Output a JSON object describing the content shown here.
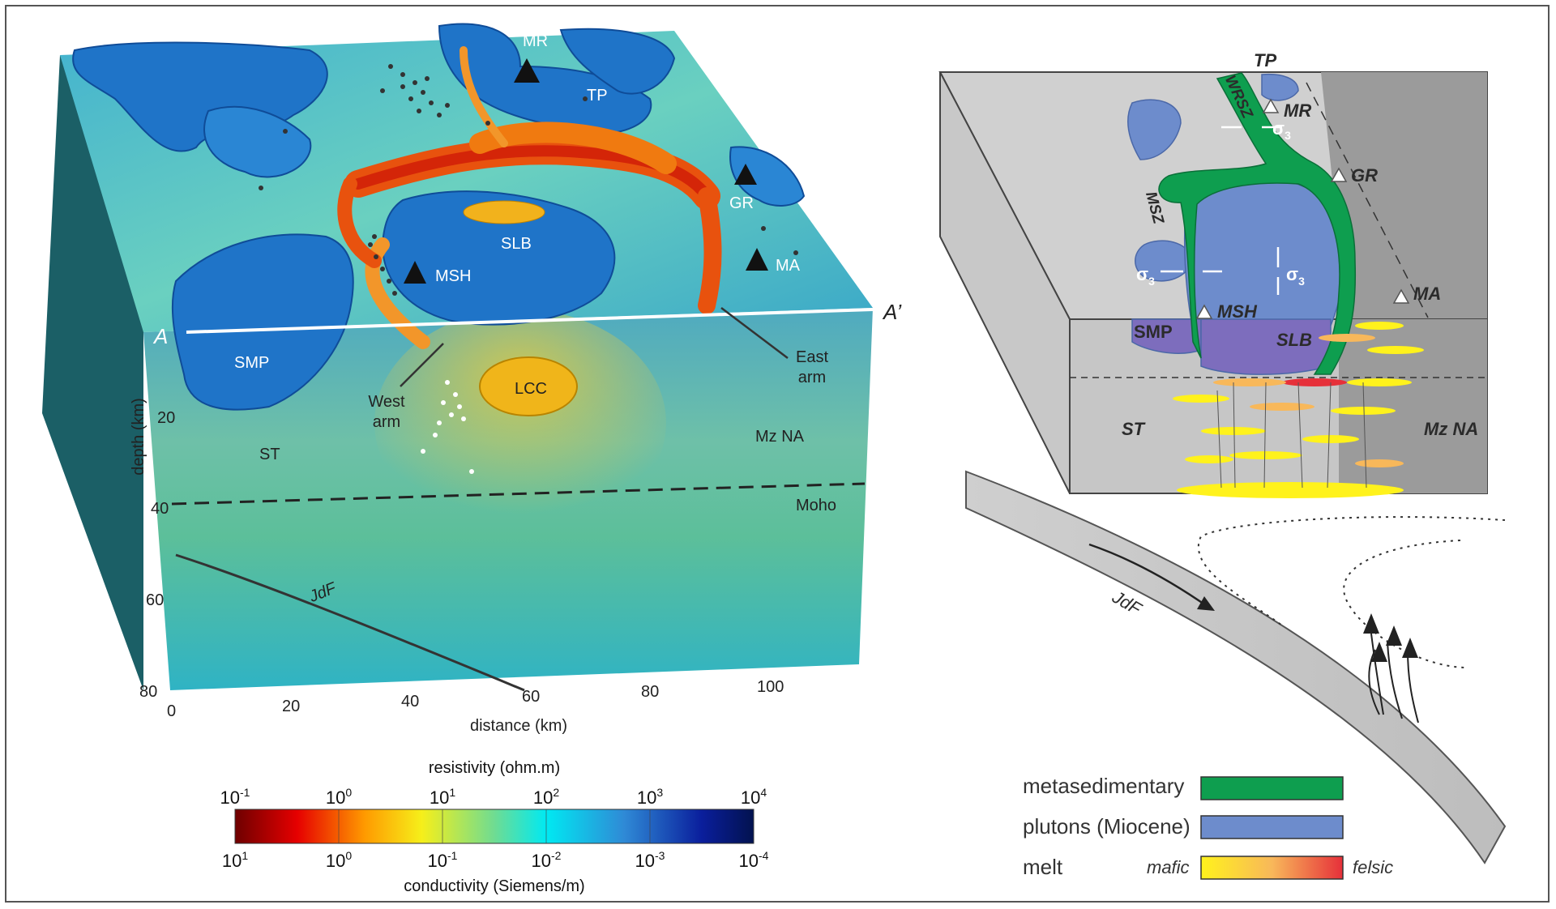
{
  "left_model": {
    "surface_labels": {
      "mr": "MR",
      "tp": "TP",
      "gr": "GR",
      "slb": "SLB",
      "msh": "MSH",
      "ma": "MA",
      "smp": "SMP"
    },
    "section_labels": {
      "a": "A",
      "a_prime": "A’",
      "west_arm": [
        "West",
        "arm"
      ],
      "east_arm": [
        "East",
        "arm"
      ],
      "lcc": "LCC",
      "st": "ST",
      "mz_na": "Mz NA",
      "moho": "Moho",
      "jdf": "JdF"
    },
    "depth_axis": {
      "title": "depth (km)",
      "ticks": [
        "20",
        "40",
        "60",
        "80"
      ]
    },
    "distance_axis": {
      "title": "distance (km)",
      "ticks": [
        "0",
        "20",
        "40",
        "60",
        "80",
        "100"
      ]
    }
  },
  "colorbar": {
    "resistivity_title": "resistivity (ohm.m)",
    "conductivity_title": "conductivity (Siemens/m)",
    "resistivity_ticks": [
      {
        "base": "10",
        "exp": "-1"
      },
      {
        "base": "10",
        "exp": "0"
      },
      {
        "base": "10",
        "exp": "1"
      },
      {
        "base": "10",
        "exp": "2"
      },
      {
        "base": "10",
        "exp": "3"
      },
      {
        "base": "10",
        "exp": "4"
      }
    ],
    "conductivity_ticks": [
      {
        "base": "10",
        "exp": "1"
      },
      {
        "base": "10",
        "exp": "0"
      },
      {
        "base": "10",
        "exp": "-1"
      },
      {
        "base": "10",
        "exp": "-2"
      },
      {
        "base": "10",
        "exp": "-3"
      },
      {
        "base": "10",
        "exp": "-4"
      }
    ],
    "colors": [
      "#6e0000",
      "#e60000",
      "#ff9a00",
      "#f6ef1a",
      "#6fdc92",
      "#00e9f2",
      "#2f8ad6",
      "#0a1e9c",
      "#02124f"
    ]
  },
  "right_diagram": {
    "labels": {
      "tp": "TP",
      "mr": "MR",
      "wrsz": "WRSZ",
      "gr": "GR",
      "msz": "MSZ",
      "ma": "MA",
      "msh": "MSH",
      "smp": "SMP",
      "slb": "SLB",
      "st": "ST",
      "mz_na": "Mz NA",
      "jdf": "JdF",
      "sigma": "σ",
      "sigma_sub": "3"
    }
  },
  "legend": {
    "items": [
      {
        "label": "metasedimentary",
        "color": "#0e9e4f"
      },
      {
        "label": "plutons (Miocene)",
        "color": "#6d8ccc"
      },
      {
        "label": "melt",
        "color": "gradient"
      }
    ],
    "melt_left": "mafic",
    "melt_right": "felsic"
  }
}
